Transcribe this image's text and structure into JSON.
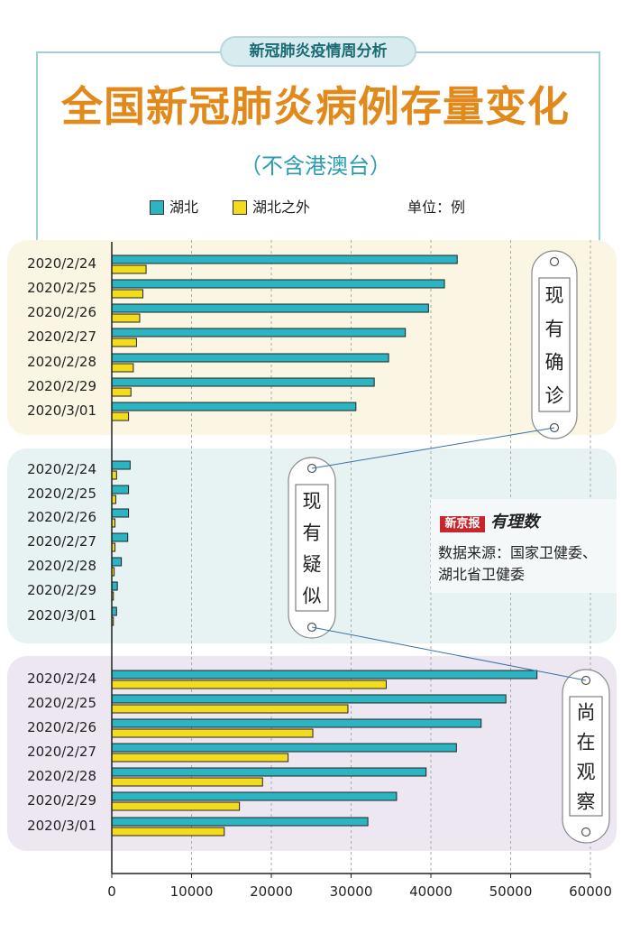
{
  "header": {
    "tag": "新冠肺炎疫情周分析",
    "title": "全国新冠肺炎病例存量变化",
    "subtitle": "（不含港澳台）",
    "unit": "单位：例"
  },
  "legend": [
    {
      "name": "湖北",
      "color": "#2bb5c2"
    },
    {
      "name": "湖北之外",
      "color": "#f2dc1c"
    }
  ],
  "source": {
    "brand": "新京报",
    "brand_sub": "有理数",
    "text_line1": "数据来源：国家卫健委、",
    "text_line2": "湖北省卫健委"
  },
  "colors": {
    "hubei": "#2bb5c2",
    "outside": "#f2dc1c",
    "panel1": "#fbf6e3",
    "panel2": "#e7f3f2",
    "panel3": "#ede7f2",
    "accent": "#e2891c"
  },
  "chart_data": {
    "type": "bar",
    "orientation": "horizontal",
    "categories": [
      "2020/2/24",
      "2020/2/25",
      "2020/2/26",
      "2020/2/27",
      "2020/2/28",
      "2020/2/29",
      "2020/3/01"
    ],
    "xlim": [
      0,
      60000
    ],
    "xticks": [
      "0",
      "10000",
      "20000",
      "30000",
      "40000",
      "50000",
      "60000"
    ],
    "grid": "vertical dashed",
    "legend_position": "top",
    "panels": [
      {
        "label": "现有确诊",
        "series": [
          {
            "name": "湖北",
            "values": [
              43300,
              41700,
              39700,
              36800,
              34700,
              32900,
              30600
            ]
          },
          {
            "name": "湖北之外",
            "values": [
              4300,
              3900,
              3500,
              3100,
              2700,
              2400,
              2100
            ]
          }
        ]
      },
      {
        "label": "现有疑似",
        "series": [
          {
            "name": "湖北",
            "values": [
              2300,
              2100,
              2100,
              2000,
              1200,
              700,
              600
            ]
          },
          {
            "name": "湖北之外",
            "values": [
              600,
              500,
              400,
              400,
              300,
              200,
              200
            ]
          }
        ]
      },
      {
        "label": "尚在观察",
        "series": [
          {
            "name": "湖北",
            "values": [
              53300,
              49400,
              46300,
              43200,
              39400,
              35700,
              32100
            ]
          },
          {
            "name": "湖北之外",
            "values": [
              34400,
              29600,
              25200,
              22100,
              18900,
              16000,
              14100
            ]
          }
        ]
      }
    ]
  }
}
